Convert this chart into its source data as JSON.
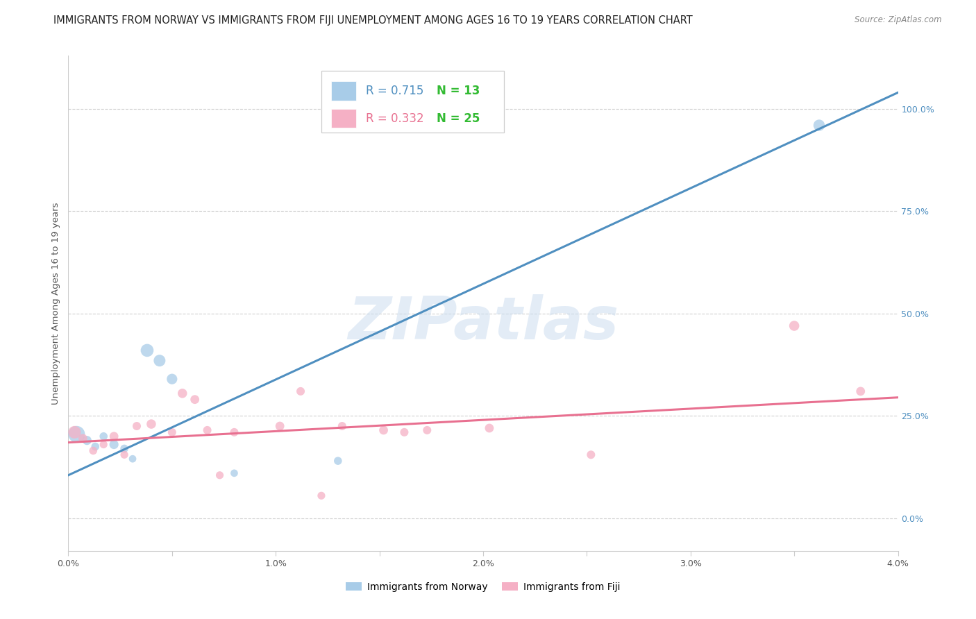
{
  "title": "IMMIGRANTS FROM NORWAY VS IMMIGRANTS FROM FIJI UNEMPLOYMENT AMONG AGES 16 TO 19 YEARS CORRELATION CHART",
  "source": "Source: ZipAtlas.com",
  "ylabel": "Unemployment Among Ages 16 to 19 years",
  "xlim": [
    0.0,
    4.0
  ],
  "ylim": [
    -8.0,
    113.0
  ],
  "norway_R": 0.715,
  "norway_N": 13,
  "fiji_R": 0.332,
  "fiji_N": 25,
  "norway_color": "#a8cce8",
  "fiji_color": "#f5b0c5",
  "norway_line_color": "#4f8fc0",
  "fiji_line_color": "#e87090",
  "n_color": "#33bb33",
  "norway_x": [
    0.04,
    0.09,
    0.13,
    0.17,
    0.22,
    0.27,
    0.31,
    0.38,
    0.44,
    0.5,
    0.8,
    1.3,
    3.62
  ],
  "norway_y": [
    20.5,
    19.0,
    17.5,
    20.0,
    18.0,
    17.0,
    14.5,
    41.0,
    38.5,
    34.0,
    11.0,
    14.0,
    96.0
  ],
  "norway_sizes": [
    300,
    90,
    70,
    70,
    90,
    70,
    60,
    180,
    150,
    120,
    60,
    70,
    140
  ],
  "fiji_x": [
    0.03,
    0.07,
    0.12,
    0.17,
    0.22,
    0.27,
    0.33,
    0.4,
    0.5,
    0.55,
    0.61,
    0.67,
    0.73,
    0.8,
    1.02,
    1.12,
    1.22,
    1.32,
    1.52,
    1.62,
    1.73,
    2.03,
    2.52,
    3.5,
    3.82
  ],
  "fiji_y": [
    21.0,
    19.5,
    16.5,
    18.0,
    20.0,
    15.5,
    22.5,
    23.0,
    21.0,
    30.5,
    29.0,
    21.5,
    10.5,
    21.0,
    22.5,
    31.0,
    5.5,
    22.5,
    21.5,
    21.0,
    21.5,
    22.0,
    15.5,
    47.0,
    31.0
  ],
  "fiji_sizes": [
    170,
    85,
    70,
    65,
    85,
    65,
    75,
    95,
    75,
    95,
    85,
    75,
    65,
    75,
    85,
    75,
    65,
    75,
    85,
    75,
    75,
    85,
    75,
    110,
    85
  ],
  "norway_reg": [
    0.0,
    10.5,
    4.0,
    104.0
  ],
  "fiji_reg": [
    0.0,
    18.5,
    4.0,
    29.5
  ],
  "yticks": [
    0.0,
    25.0,
    50.0,
    75.0,
    100.0
  ],
  "ytick_labels": [
    "0.0%",
    "25.0%",
    "50.0%",
    "75.0%",
    "100.0%"
  ],
  "xticks": [
    0.0,
    0.5,
    1.0,
    1.5,
    2.0,
    2.5,
    3.0,
    3.5,
    4.0
  ],
  "xtick_labels": [
    "0.0%",
    "",
    "1.0%",
    "",
    "2.0%",
    "",
    "3.0%",
    "",
    "4.0%"
  ],
  "watermark": "ZIPatlas",
  "background_color": "#ffffff",
  "grid_color": "#d0d0d0",
  "legend_norway_label": "Immigrants from Norway",
  "legend_fiji_label": "Immigrants from Fiji"
}
